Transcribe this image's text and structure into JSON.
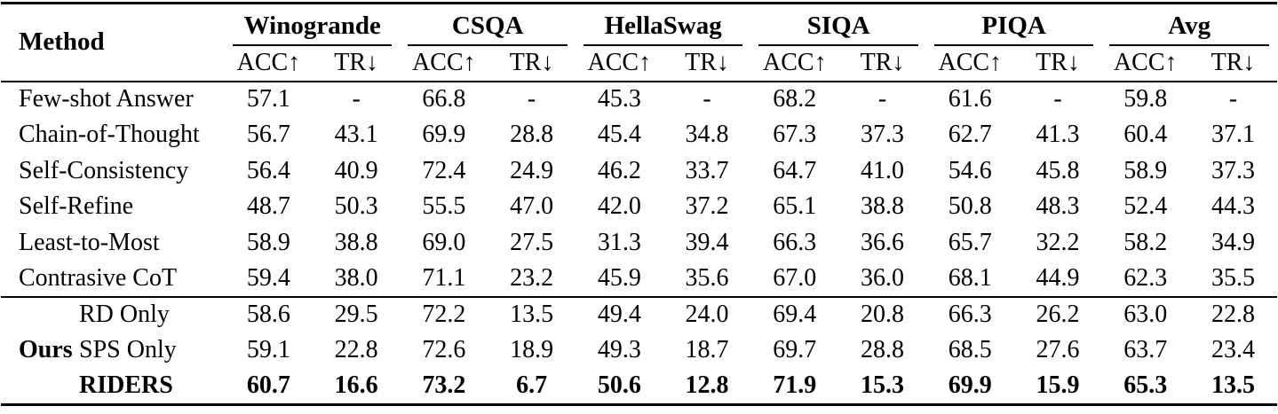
{
  "colors": {
    "text": "#000000",
    "background": "#ffffff",
    "rule": "#000000"
  },
  "table": {
    "method_header": "Method",
    "subheader_acc": "ACC↑",
    "subheader_tr": "TR↓",
    "groups": [
      {
        "label": "Winogrande"
      },
      {
        "label": "CSQA"
      },
      {
        "label": "HellaSwag"
      },
      {
        "label": "SIQA"
      },
      {
        "label": "PIQA"
      },
      {
        "label": "Avg"
      }
    ],
    "baseline_rows": [
      {
        "method": "Few-shot Answer",
        "values": [
          "57.1",
          "-",
          "66.8",
          "-",
          "45.3",
          "-",
          "68.2",
          "-",
          "61.6",
          "-",
          "59.8",
          "-"
        ]
      },
      {
        "method": "Chain-of-Thought",
        "values": [
          "56.7",
          "43.1",
          "69.9",
          "28.8",
          "45.4",
          "34.8",
          "67.3",
          "37.3",
          "62.7",
          "41.3",
          "60.4",
          "37.1"
        ]
      },
      {
        "method": "Self-Consistency",
        "values": [
          "56.4",
          "40.9",
          "72.4",
          "24.9",
          "46.2",
          "33.7",
          "64.7",
          "41.0",
          "54.6",
          "45.8",
          "58.9",
          "37.3"
        ]
      },
      {
        "method": "Self-Refine",
        "values": [
          "48.7",
          "50.3",
          "55.5",
          "47.0",
          "42.0",
          "37.2",
          "65.1",
          "38.8",
          "50.8",
          "48.3",
          "52.4",
          "44.3"
        ]
      },
      {
        "method": "Least-to-Most",
        "values": [
          "58.9",
          "38.8",
          "69.0",
          "27.5",
          "31.3",
          "39.4",
          "66.3",
          "36.6",
          "65.7",
          "32.2",
          "58.2",
          "34.9"
        ]
      },
      {
        "method": "Contrasive CoT",
        "values": [
          "59.4",
          "38.0",
          "71.1",
          "23.2",
          "45.9",
          "35.6",
          "67.0",
          "36.0",
          "68.1",
          "44.9",
          "62.3",
          "35.5"
        ]
      }
    ],
    "ours_group_label": "Ours",
    "ours_rows": [
      {
        "method": "RD Only",
        "values": [
          "58.6",
          "29.5",
          "72.2",
          "13.5",
          "49.4",
          "24.0",
          "69.4",
          "20.8",
          "66.3",
          "26.2",
          "63.0",
          "22.8"
        ]
      },
      {
        "method": "SPS Only",
        "values": [
          "59.1",
          "22.8",
          "72.6",
          "18.9",
          "49.3",
          "18.7",
          "69.7",
          "28.8",
          "68.5",
          "27.6",
          "63.7",
          "23.4"
        ]
      },
      {
        "method": "RIDERS",
        "values": [
          "60.7",
          "16.6",
          "73.2",
          "6.7",
          "50.6",
          "12.8",
          "71.9",
          "15.3",
          "69.9",
          "15.9",
          "65.3",
          "13.5"
        ]
      }
    ]
  }
}
